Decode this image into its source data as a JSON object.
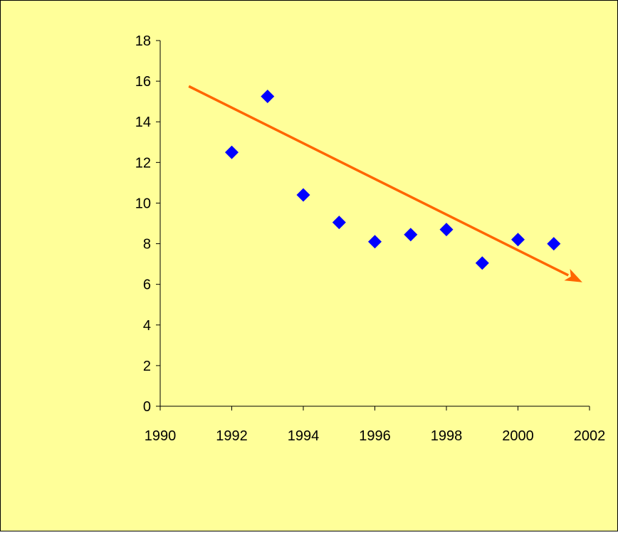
{
  "chart_data": {
    "type": "scatter",
    "title": "",
    "xlabel": "",
    "ylabel": "",
    "xlim": [
      1990,
      2002
    ],
    "ylim": [
      0,
      18
    ],
    "x_ticks": [
      1990,
      1992,
      1994,
      1996,
      1998,
      2000,
      2002
    ],
    "y_ticks": [
      0,
      2,
      4,
      6,
      8,
      10,
      12,
      14,
      16,
      18
    ],
    "grid": false,
    "legend": "none",
    "series": [
      {
        "marker": "diamond",
        "color": "#0000ff",
        "x": [
          1992,
          1993,
          1994,
          1995,
          1996,
          1997,
          1998,
          1999,
          2000,
          2001
        ],
        "y": [
          12.5,
          15.25,
          10.4,
          9.05,
          8.1,
          8.45,
          8.7,
          7.05,
          8.2,
          8.0
        ]
      }
    ],
    "annotations": [
      {
        "type": "trend-arrow",
        "color": "#ff6600",
        "from": [
          1990.8,
          15.75
        ],
        "to": [
          2001.8,
          6.1
        ]
      }
    ],
    "background_color": "#ffff99"
  }
}
